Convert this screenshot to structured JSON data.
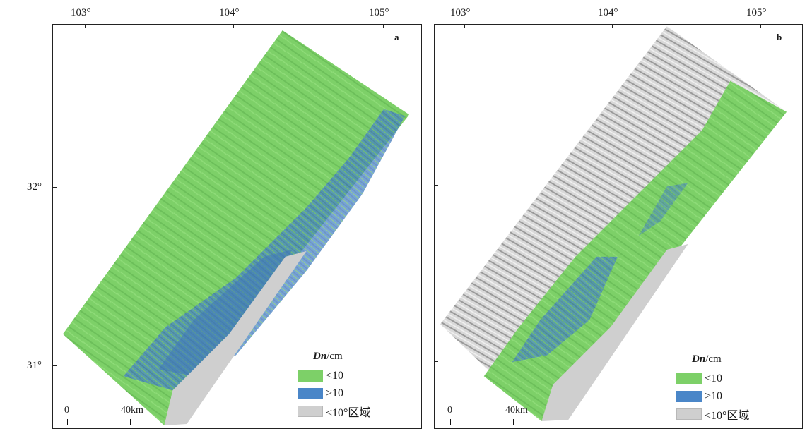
{
  "colors": {
    "low_dn": "#7dd068",
    "high_dn": "#4a86c8",
    "slope_mask": "#cfcfcf",
    "hillshade": "#bfbfbf"
  },
  "axes": {
    "longitude_labels": [
      "103°",
      "104°",
      "105°"
    ],
    "latitude_labels": [
      "32°",
      "31°"
    ]
  },
  "panels": [
    {
      "id": "a",
      "letter": "a",
      "legend": {
        "title_var": "Dn",
        "title_unit": "/cm",
        "items": [
          {
            "label": "<10",
            "color_key": "low_dn"
          },
          {
            "label": ">10",
            "color_key": "high_dn"
          },
          {
            "label": "<10°区域",
            "color_key": "slope_mask"
          }
        ]
      },
      "scalebar": {
        "zero": "0",
        "max": "40km"
      }
    },
    {
      "id": "b",
      "letter": "b",
      "legend": {
        "title_var": "Dn",
        "title_unit": "/cm",
        "items": [
          {
            "label": "<10",
            "color_key": "low_dn"
          },
          {
            "label": ">10",
            "color_key": "high_dn"
          },
          {
            "label": "<10°区域",
            "color_key": "slope_mask"
          }
        ]
      },
      "scalebar": {
        "zero": "0",
        "max": "40km"
      }
    }
  ]
}
